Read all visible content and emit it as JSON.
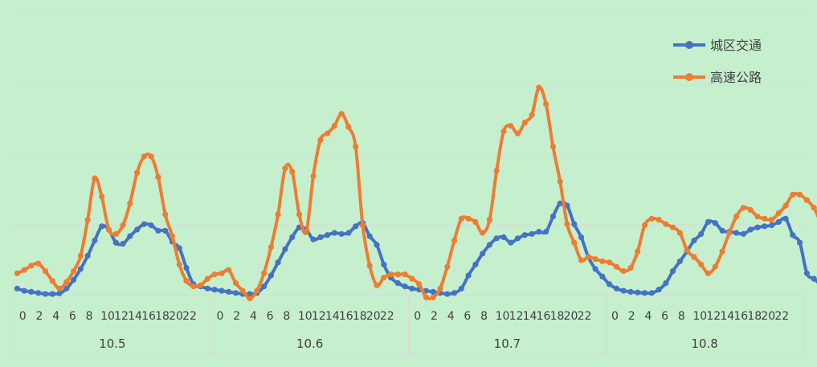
{
  "chart_data": {
    "type": "line",
    "title": "",
    "xlabel": "",
    "ylabel": "",
    "grid": true,
    "legend_position": "top-right",
    "groups": [
      "10.5",
      "10.6",
      "10.7",
      "10.8"
    ],
    "hour_ticks": [
      "0",
      "2",
      "4",
      "6",
      "8",
      "10",
      "12",
      "14",
      "16",
      "18",
      "20",
      "22"
    ],
    "y_axis_labels_shown": false,
    "y_relative_range": [
      0,
      100
    ],
    "series": [
      {
        "name": "城区交通",
        "color": "#4472c4",
        "values": [
          3,
          2,
          1.5,
          1,
          0.5,
          0.5,
          0.8,
          3,
          7,
          12,
          18,
          25,
          31.5,
          30,
          24,
          23.5,
          27,
          30,
          32.5,
          32,
          29.5,
          29.5,
          24.5,
          21.5,
          12.5,
          5,
          4,
          3,
          2.5,
          2,
          1.5,
          1,
          0.5,
          0.5,
          1,
          4,
          9,
          15,
          21,
          26.5,
          31,
          30,
          25.5,
          26.5,
          27.5,
          28.5,
          28,
          28.5,
          31.5,
          33,
          27,
          23,
          14,
          8,
          5.5,
          4,
          3,
          2.5,
          2,
          1.5,
          1,
          0.5,
          1,
          3,
          9,
          14,
          19,
          23,
          26,
          26.5,
          24,
          26,
          27.5,
          28,
          29,
          29,
          36,
          42,
          41,
          32.5,
          26.5,
          17.5,
          12,
          8.5,
          5,
          3,
          2,
          1.5,
          1.2,
          1,
          1,
          2.5,
          5.5,
          11,
          15.5,
          20,
          25,
          28,
          33.5,
          33,
          29.5,
          29,
          28.5,
          28,
          30,
          31,
          31.5,
          32,
          33.5,
          35,
          27.5,
          24,
          10,
          7.5,
          4.5
        ]
      },
      {
        "name": "高速公路",
        "color": "#ed7d31",
        "values": [
          10,
          11.5,
          13.5,
          14.5,
          11,
          6.5,
          3,
          6,
          11,
          18,
          34.5,
          53.5,
          45,
          30,
          28,
          32,
          42,
          56,
          63.5,
          63.5,
          54,
          37,
          27,
          14,
          6.5,
          4,
          4.5,
          7.5,
          9.5,
          10,
          11.5,
          5.5,
          2,
          -1.5,
          2,
          10,
          22,
          37,
          58,
          56.5,
          37,
          29,
          54.5,
          71,
          74,
          77.5,
          83,
          77,
          68,
          32,
          13.5,
          4.5,
          8,
          9.5,
          9.5,
          9.5,
          7.5,
          5,
          -1,
          -1,
          3,
          13,
          25,
          35,
          35,
          33.5,
          28.5,
          34.5,
          57,
          75,
          77.5,
          74,
          79,
          82.5,
          95,
          87.5,
          68,
          52,
          32.5,
          24,
          16,
          17.5,
          16.5,
          15.5,
          15,
          13,
          11,
          12.5,
          20,
          32,
          35,
          34.5,
          32.5,
          31,
          28.5,
          20.5,
          17.5,
          14,
          10,
          13,
          20,
          28.5,
          36,
          40,
          39,
          36,
          35,
          34.5,
          37.5,
          41,
          46,
          46,
          43.5,
          40,
          33,
          26,
          21.5,
          26,
          29,
          30
        ]
      }
    ]
  }
}
